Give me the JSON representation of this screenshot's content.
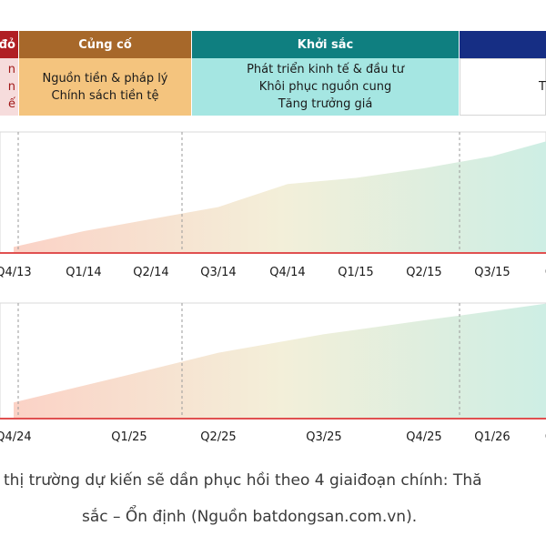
{
  "colors": {
    "phase_red": "#b01f24",
    "phase_brown": "#a7682a",
    "phase_teal": "#0f7f80",
    "phase_navy": "#162e84",
    "body_red": "#f6dcdc",
    "body_orange": "#f4c47e",
    "body_teal": "#a5e6e2",
    "body_white": "#ffffff",
    "axis_line": "#e05050",
    "gradient_start": "#fbd2c6",
    "gradient_mid": "#f3efd9",
    "gradient_end": "#cdeee4"
  },
  "phases": [
    {
      "title": "đỏ",
      "body_lines": [
        "n",
        "n",
        "ế"
      ]
    },
    {
      "title": "Củng cố",
      "body_lines": [
        "Nguồn tiền & pháp lý",
        "Chính sách tiền tệ"
      ]
    },
    {
      "title": "Khởi sắc",
      "body_lines": [
        "Phát triển kinh tế & đầu tư",
        "Khôi phục nguồn cung",
        "Tăng trưởng giá"
      ]
    },
    {
      "title": "",
      "body_lines": [
        "Th"
      ]
    }
  ],
  "chart_data": [
    {
      "type": "area",
      "x": [
        "Q4/13",
        "Q1/14",
        "Q2/14",
        "Q3/14",
        "Q4/14",
        "Q1/15",
        "Q2/15",
        "Q3/15",
        "Q"
      ],
      "series": [
        {
          "values": [
            0.05,
            0.18,
            0.28,
            0.38,
            0.57,
            0.62,
            0.7,
            0.8,
            0.93
          ]
        }
      ],
      "ylim": [
        0,
        1
      ]
    },
    {
      "type": "area",
      "x": [
        "Q4/24",
        "Q1/25",
        "Q2/25",
        "Q3/25",
        "Q4/25",
        "Q1/26",
        "Q"
      ],
      "series": [
        {
          "values": [
            0.14,
            0.38,
            0.57,
            0.73,
            0.85,
            0.93,
            1.0
          ]
        }
      ],
      "ylim": [
        0,
        1
      ]
    }
  ],
  "caption": {
    "line1": "thị trường dự kiến sẽ dần phục hồi theo 4 giaiđoạn chính: Thă",
    "line2": "sắc – Ổn định (Nguồn batdongsan.com.vn)."
  }
}
